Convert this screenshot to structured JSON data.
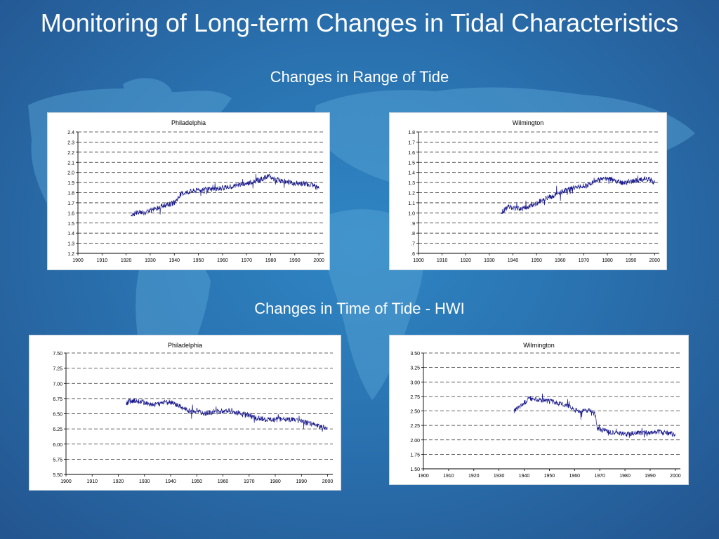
{
  "title": "Monitoring of Long-term Changes in Tidal Characteristics",
  "sections": {
    "range": "Changes in Range of Tide",
    "time": "Changes in Time of Tide - HWI"
  },
  "colors": {
    "line": "#1a1a8c",
    "grid": "#333333",
    "title_text": "#ffffff"
  },
  "chart_data": [
    {
      "type": "line",
      "title": "Philadelphia",
      "xlim": [
        1900,
        2002
      ],
      "ylim": [
        1.2,
        2.4
      ],
      "xticks": [
        "1900",
        "1910",
        "1920",
        "1930",
        "1940",
        "1950",
        "1960",
        "1970",
        "1980",
        "1990",
        "2000"
      ],
      "yticks": [
        "1.2",
        "1.3",
        "1.4",
        "1.5",
        "1.6",
        "1.7",
        "1.8",
        "1.9",
        "2.0",
        "2.1",
        "2.2",
        "2.3",
        "2.4"
      ],
      "series": [
        {
          "x": [
            1922,
            1925,
            1928,
            1931,
            1934,
            1937,
            1940,
            1943,
            1946,
            1949,
            1952,
            1955,
            1958,
            1961,
            1964,
            1967,
            1970,
            1973,
            1976,
            1979,
            1982,
            1985,
            1988,
            1991,
            1994,
            1997,
            2000
          ],
          "y": [
            1.58,
            1.61,
            1.6,
            1.63,
            1.66,
            1.68,
            1.7,
            1.79,
            1.81,
            1.82,
            1.83,
            1.83,
            1.84,
            1.85,
            1.86,
            1.88,
            1.89,
            1.91,
            1.93,
            1.96,
            1.93,
            1.91,
            1.9,
            1.89,
            1.89,
            1.88,
            1.84
          ]
        }
      ]
    },
    {
      "type": "line",
      "title": "Wilmington",
      "xlim": [
        1900,
        2002
      ],
      "ylim": [
        0.6,
        1.8
      ],
      "xticks": [
        "1900",
        "1910",
        "1920",
        "1930",
        "1940",
        "1950",
        "1960",
        "1970",
        "1980",
        "1990",
        "2000"
      ],
      "yticks": [
        ".6",
        ".7",
        ".8",
        ".9",
        "1.0",
        "1.1",
        "1.2",
        "1.3",
        "1.4",
        "1.5",
        "1.6",
        "1.7",
        "1.8"
      ],
      "series": [
        {
          "x": [
            1935,
            1938,
            1941,
            1944,
            1947,
            1950,
            1953,
            1956,
            1959,
            1962,
            1965,
            1968,
            1971,
            1974,
            1977,
            1980,
            1983,
            1986,
            1989,
            1992,
            1995,
            1998,
            2000
          ],
          "y": [
            1.0,
            1.06,
            1.05,
            1.04,
            1.06,
            1.09,
            1.14,
            1.16,
            1.19,
            1.22,
            1.24,
            1.26,
            1.27,
            1.3,
            1.33,
            1.34,
            1.32,
            1.3,
            1.31,
            1.32,
            1.33,
            1.33,
            1.3
          ]
        }
      ]
    },
    {
      "type": "line",
      "title": "Philadelphia",
      "xlim": [
        1900,
        2002
      ],
      "ylim": [
        5.5,
        7.5
      ],
      "xticks": [
        "1900",
        "1910",
        "1920",
        "1930",
        "1940",
        "1950",
        "1960",
        "1970",
        "1980",
        "1990",
        "2000"
      ],
      "yticks": [
        "5.50",
        "5.75",
        "6.00",
        "6.25",
        "6.50",
        "6.75",
        "7.00",
        "7.25",
        "7.50"
      ],
      "series": [
        {
          "x": [
            1923,
            1926,
            1929,
            1932,
            1935,
            1938,
            1941,
            1944,
            1947,
            1950,
            1953,
            1956,
            1959,
            1962,
            1965,
            1968,
            1971,
            1974,
            1977,
            1980,
            1983,
            1986,
            1989,
            1992,
            1995,
            1998,
            2000
          ],
          "y": [
            6.68,
            6.72,
            6.7,
            6.66,
            6.65,
            6.7,
            6.68,
            6.6,
            6.55,
            6.55,
            6.5,
            6.53,
            6.54,
            6.56,
            6.52,
            6.5,
            6.45,
            6.42,
            6.4,
            6.4,
            6.42,
            6.4,
            6.38,
            6.35,
            6.32,
            6.28,
            6.27
          ]
        }
      ]
    },
    {
      "type": "line",
      "title": "Wilmington",
      "xlim": [
        1900,
        2002
      ],
      "ylim": [
        1.5,
        3.5
      ],
      "xticks": [
        "1900",
        "1910",
        "1920",
        "1930",
        "1940",
        "1950",
        "1960",
        "1970",
        "1980",
        "1990",
        "2000"
      ],
      "yticks": [
        "1.50",
        "1.75",
        "2.00",
        "2.25",
        "2.50",
        "2.75",
        "3.00",
        "3.25",
        "3.50"
      ],
      "series": [
        {
          "x": [
            1936,
            1939,
            1942,
            1945,
            1948,
            1951,
            1954,
            1957,
            1960,
            1963,
            1966,
            1968,
            1969,
            1972,
            1975,
            1978,
            1981,
            1984,
            1987,
            1990,
            1993,
            1996,
            1999,
            2000
          ],
          "y": [
            2.5,
            2.6,
            2.72,
            2.7,
            2.68,
            2.66,
            2.62,
            2.6,
            2.52,
            2.5,
            2.5,
            2.46,
            2.2,
            2.16,
            2.13,
            2.12,
            2.1,
            2.12,
            2.12,
            2.13,
            2.14,
            2.12,
            2.1,
            2.1
          ]
        }
      ]
    }
  ]
}
